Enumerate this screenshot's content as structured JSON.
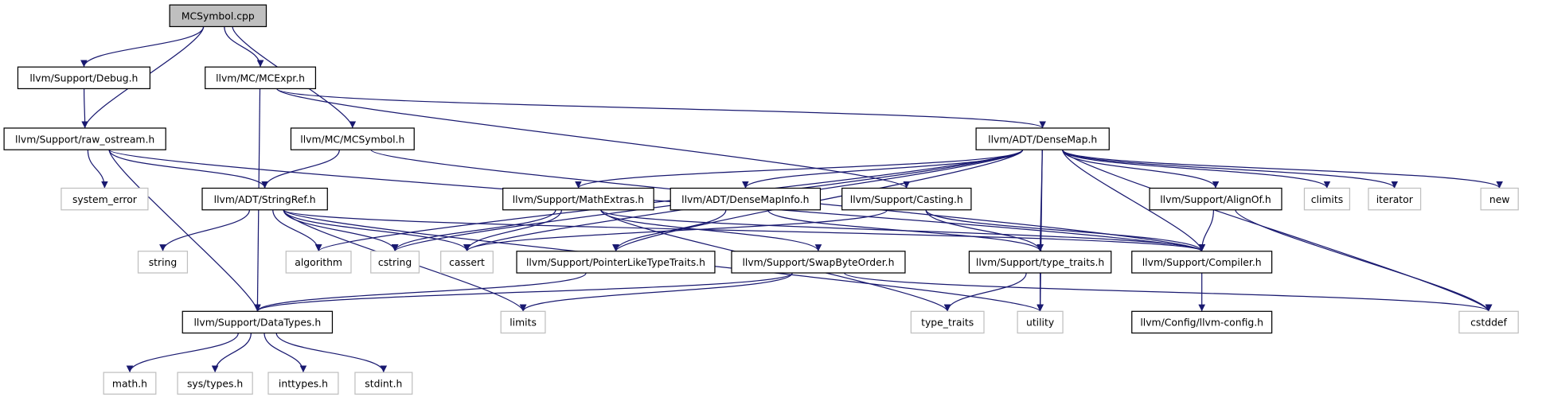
{
  "nodes": [
    "MCSymbol.cpp",
    "llvm/Support/Debug.h",
    "llvm/MC/MCExpr.h",
    "llvm/Support/raw_ostream.h",
    "llvm/MC/MCSymbol.h",
    "llvm/ADT/DenseMap.h",
    "system_error",
    "llvm/ADT/StringRef.h",
    "llvm/Support/MathExtras.h",
    "llvm/ADT/DenseMapInfo.h",
    "llvm/Support/Casting.h",
    "llvm/Support/AlignOf.h",
    "climits",
    "iterator",
    "new",
    "string",
    "algorithm",
    "cstring",
    "cassert",
    "llvm/Support/PointerLikeTypeTraits.h",
    "llvm/Support/SwapByteOrder.h",
    "llvm/Support/type_traits.h",
    "llvm/Support/Compiler.h",
    "llvm/Support/DataTypes.h",
    "limits",
    "type_traits",
    "utility",
    "cstddef",
    "llvm/Config/llvm-config.h",
    "math.h",
    "sys/types.h",
    "inttypes.h",
    "stdint.h"
  ]
}
